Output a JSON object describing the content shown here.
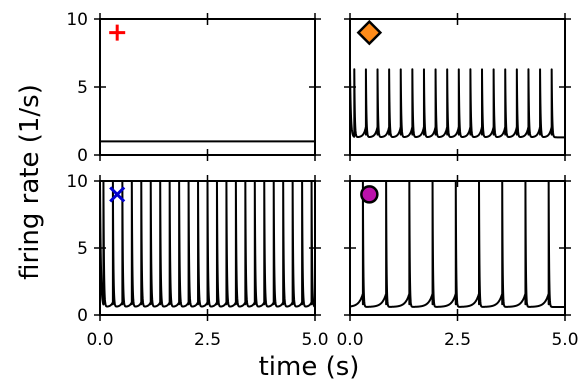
{
  "chart_data": {
    "type": "line",
    "xlabel": "time (s)",
    "ylabel": "firing rate (1/s)",
    "xlim": [
      0,
      5
    ],
    "ylim": [
      0,
      10
    ],
    "x_ticks": [
      "0.0",
      "2.5",
      "5.0"
    ],
    "y_ticks": [
      "0",
      "5",
      "10"
    ],
    "grid": false,
    "line_color": "#000000",
    "panels": [
      {
        "id": "top-left",
        "marker": {
          "shape": "plus",
          "color": "#ff0000",
          "x": 0.4,
          "y": 9.0
        },
        "series": {
          "kind": "constant",
          "top": 1.0,
          "baseline": 1.0
        }
      },
      {
        "id": "top-right",
        "marker": {
          "shape": "diamond",
          "color": "#ff8c1a",
          "x": 0.45,
          "y": 9.0
        },
        "series": {
          "kind": "spikes",
          "spike_times": [
            0.1,
            0.37,
            0.64,
            0.91,
            1.18,
            1.45,
            1.72,
            1.99,
            2.26,
            2.53,
            2.8,
            3.07,
            3.34,
            3.61,
            3.88,
            4.15,
            4.42,
            4.69
          ],
          "top": 6.3,
          "baseline": 1.3
        }
      },
      {
        "id": "bottom-left",
        "marker": {
          "shape": "x",
          "color": "#0000cc",
          "x": 0.4,
          "y": 9.0
        },
        "series": {
          "kind": "spikes",
          "spike_times": [
            0.08,
            0.3,
            0.52,
            0.74,
            0.96,
            1.18,
            1.4,
            1.62,
            1.84,
            2.06,
            2.28,
            2.5,
            2.72,
            2.94,
            3.16,
            3.38,
            3.6,
            3.82,
            4.04,
            4.26,
            4.48,
            4.7,
            4.92
          ],
          "top": 10.0,
          "baseline": 0.6
        }
      },
      {
        "id": "bottom-right",
        "marker": {
          "shape": "circle",
          "color": "#bb11aa",
          "x": 0.45,
          "y": 9.0
        },
        "series": {
          "kind": "burst",
          "spike_times": [
            0.3,
            0.84,
            1.38,
            1.92,
            2.46,
            3.0,
            3.54,
            4.08,
            4.62
          ],
          "top": 10.0,
          "baseline": 0.6,
          "shoulder": 1.6
        }
      }
    ]
  }
}
